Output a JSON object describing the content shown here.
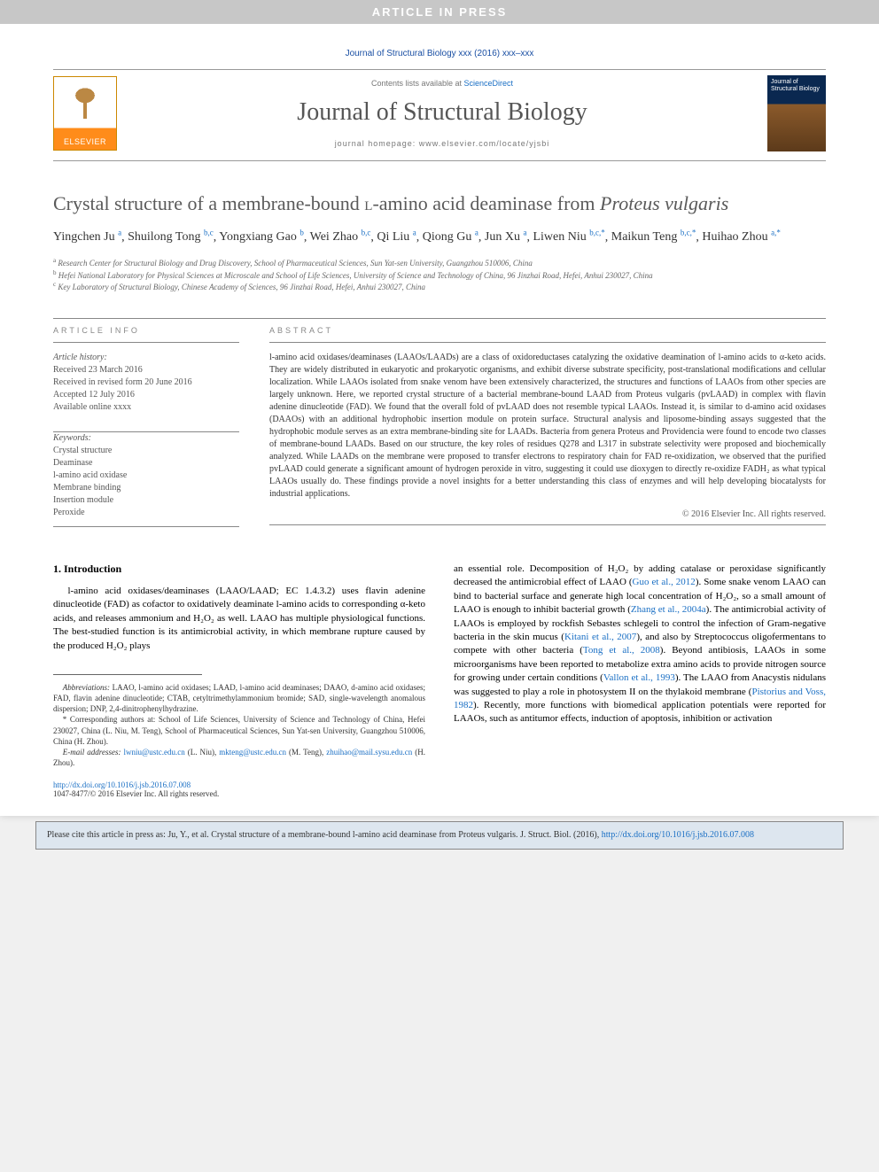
{
  "banner": "ARTICLE IN PRESS",
  "journal_ref": "Journal of Structural Biology xxx (2016) xxx–xxx",
  "header": {
    "contents_prefix": "Contents lists available at ",
    "contents_link": "ScienceDirect",
    "journal_name": "Journal of Structural Biology",
    "homepage": "journal homepage: www.elsevier.com/locate/yjsbi",
    "elsevier_label": "ELSEVIER",
    "cover_title": "Journal of Structural Biology"
  },
  "title_a": "Crystal structure of a membrane-bound ",
  "title_sc": "l",
  "title_b": "-amino acid deaminase from ",
  "title_i": "Proteus vulgaris",
  "authors": [
    {
      "name": "Yingchen Ju",
      "sup": "a"
    },
    {
      "name": "Shuilong Tong",
      "sup": "b,c"
    },
    {
      "name": "Yongxiang Gao",
      "sup": "b"
    },
    {
      "name": "Wei Zhao",
      "sup": "b,c"
    },
    {
      "name": "Qi Liu",
      "sup": "a"
    },
    {
      "name": "Qiong Gu",
      "sup": "a"
    },
    {
      "name": "Jun Xu",
      "sup": "a"
    },
    {
      "name": "Liwen Niu",
      "sup": "b,c,*"
    },
    {
      "name": "Maikun Teng",
      "sup": "b,c,*"
    },
    {
      "name": "Huihao Zhou",
      "sup": "a,*"
    }
  ],
  "affiliations": [
    {
      "sup": "a",
      "text": "Research Center for Structural Biology and Drug Discovery, School of Pharmaceutical Sciences, Sun Yat-sen University, Guangzhou 510006, China"
    },
    {
      "sup": "b",
      "text": "Hefei National Laboratory for Physical Sciences at Microscale and School of Life Sciences, University of Science and Technology of China, 96 Jinzhai Road, Hefei, Anhui 230027, China"
    },
    {
      "sup": "c",
      "text": "Key Laboratory of Structural Biology, Chinese Academy of Sciences, 96 Jinzhai Road, Hefei, Anhui 230027, China"
    }
  ],
  "info_head": "ARTICLE INFO",
  "abstract_head": "ABSTRACT",
  "history": {
    "label": "Article history:",
    "received": "Received 23 March 2016",
    "revised": "Received in revised form 20 June 2016",
    "accepted": "Accepted 12 July 2016",
    "online": "Available online xxxx"
  },
  "keywords": {
    "label": "Keywords:",
    "items": [
      "Crystal structure",
      "Deaminase",
      "l-amino acid oxidase",
      "Membrane binding",
      "Insertion module",
      "Peroxide"
    ]
  },
  "abstract": "l-amino acid oxidases/deaminases (LAAOs/LAADs) are a class of oxidoreductases catalyzing the oxidative deamination of l-amino acids to α-keto acids. They are widely distributed in eukaryotic and prokaryotic organisms, and exhibit diverse substrate specificity, post-translational modifications and cellular localization. While LAAOs isolated from snake venom have been extensively characterized, the structures and functions of LAAOs from other species are largely unknown. Here, we reported crystal structure of a bacterial membrane-bound LAAD from Proteus vulgaris (pvLAAD) in complex with flavin adenine dinucleotide (FAD). We found that the overall fold of pvLAAD does not resemble typical LAAOs. Instead it, is similar to d-amino acid oxidases (DAAOs) with an additional hydrophobic insertion module on protein surface. Structural analysis and liposome-binding assays suggested that the hydrophobic module serves as an extra membrane-binding site for LAADs. Bacteria from genera Proteus and Providencia were found to encode two classes of membrane-bound LAADs. Based on our structure, the key roles of residues Q278 and L317 in substrate selectivity were proposed and biochemically analyzed. While LAADs on the membrane were proposed to transfer electrons to respiratory chain for FAD re-oxidization, we observed that the purified pvLAAD could generate a significant amount of hydrogen peroxide in vitro, suggesting it could use dioxygen to directly re-oxidize FADH₂ as what typical LAAOs usually do. These findings provide a novel insights for a better understanding this class of enzymes and will help developing biocatalysts for industrial applications.",
  "copyright": "© 2016 Elsevier Inc. All rights reserved.",
  "intro_head": "1. Introduction",
  "intro_para": "l-amino acid oxidases/deaminases (LAAO/LAAD; EC 1.4.3.2) uses flavin adenine dinucleotide (FAD) as cofactor to oxidatively deaminate l-amino acids to corresponding α-keto acids, and releases ammonium and H₂O₂ as well. LAAO has multiple physiological functions. The best-studied function is its antimicrobial activity, in which membrane rupture caused by the produced H₂O₂ plays",
  "col2_a": "an essential role. Decomposition of H₂O₂ by adding catalase or peroxidase significantly decreased the antimicrobial effect of LAAO (",
  "col2_ref1": "Guo et al., 2012",
  "col2_b": "). Some snake venom LAAO can bind to bacterial surface and generate high local concentration of H₂O₂, so a small amount of LAAO is enough to inhibit bacterial growth (",
  "col2_ref2": "Zhang et al., 2004a",
  "col2_c": "). The antimicrobial activity of LAAOs is employed by rockfish Sebastes schlegeli to control the infection of Gram-negative bacteria in the skin mucus (",
  "col2_ref3": "Kitani et al., 2007",
  "col2_d": "), and also by Streptococcus oligofermentans to compete with other bacteria (",
  "col2_ref4": "Tong et al., 2008",
  "col2_e": "). Beyond antibiosis, LAAOs in some microorganisms have been reported to metabolize extra amino acids to provide nitrogen source for growing under certain conditions (",
  "col2_ref5": "Vallon et al., 1993",
  "col2_f": "). The LAAO from Anacystis nidulans was suggested to play a role in photosystem II on the thylakoid membrane (",
  "col2_ref6": "Pistorius and Voss, 1982",
  "col2_g": "). Recently, more functions with biomedical application potentials were reported for LAAOs, such as antitumor effects, induction of apoptosis, inhibition or activation",
  "abbrev": {
    "label": "Abbreviations:",
    "text": " LAAO, l-amino acid oxidases; LAAD, l-amino acid deaminases; DAAO, d-amino acid oxidases; FAD, flavin adenine dinucleotide; CTAB, cetyltrimethylammonium bromide; SAD, single-wavelength anomalous dispersion; DNP, 2,4-dinitrophenylhydrazine."
  },
  "corr": {
    "text": "* Corresponding authors at: School of Life Sciences, University of Science and Technology of China, Hefei 230027, China (L. Niu, M. Teng), School of Pharmaceutical Sciences, Sun Yat-sen University, Guangzhou 510006, China (H. Zhou)."
  },
  "emails": {
    "label": "E-mail addresses:",
    "e1": "lwniu@ustc.edu.cn",
    "n1": " (L. Niu), ",
    "e2": "mkteng@ustc.edu.cn",
    "n2": " (M. Teng), ",
    "e3": "zhuihao@mail.sysu.edu.cn",
    "n3": " (H. Zhou)."
  },
  "doi": {
    "link": "http://dx.doi.org/10.1016/j.jsb.2016.07.008",
    "issn": "1047-8477/© 2016 Elsevier Inc. All rights reserved."
  },
  "citation": {
    "text": "Please cite this article in press as: Ju, Y., et al. Crystal structure of a membrane-bound l-amino acid deaminase from Proteus vulgaris. J. Struct. Biol. (2016), ",
    "link": "http://dx.doi.org/10.1016/j.jsb.2016.07.008"
  }
}
